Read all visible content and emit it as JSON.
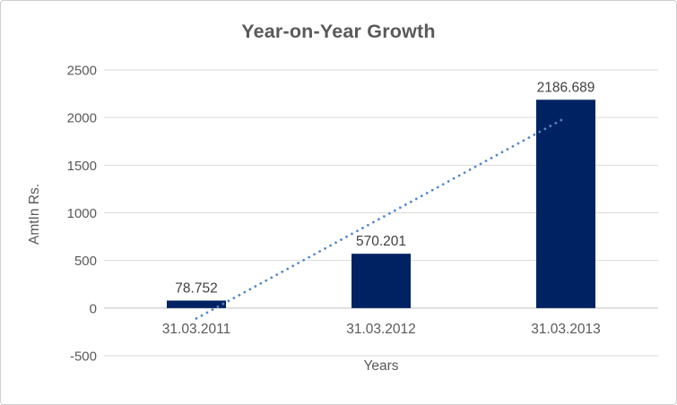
{
  "chart_data": {
    "type": "bar",
    "title": "Year-on-Year Growth",
    "xlabel": "Years",
    "ylabel": "AmtIn Rs.",
    "categories": [
      "31.03.2011",
      "31.03.2012",
      "31.03.2013"
    ],
    "values": [
      78.752,
      570.201,
      2186.689
    ],
    "data_labels": [
      "78.752",
      "570.201",
      "2186.689"
    ],
    "ylim": [
      -500,
      2500
    ],
    "yticks": [
      -500,
      0,
      500,
      1000,
      1500,
      2000,
      2500
    ],
    "grid": true,
    "legend": "none",
    "colors": {
      "bar": "#002262",
      "trendline": "#5089c9",
      "gridline": "#d9d9d9",
      "zero_axis_line": "#bfbfbf",
      "axis_text": "#595959",
      "data_label_text": "#404040",
      "title_text": "#595959",
      "chart_border": "#d0cece",
      "background": "#ffffff"
    },
    "trendline": {
      "type": "linear",
      "style": "dotted",
      "start": {
        "category_index": 0,
        "value": -108.75
      },
      "end": {
        "category_index": 2,
        "value": 1999.19
      }
    }
  }
}
